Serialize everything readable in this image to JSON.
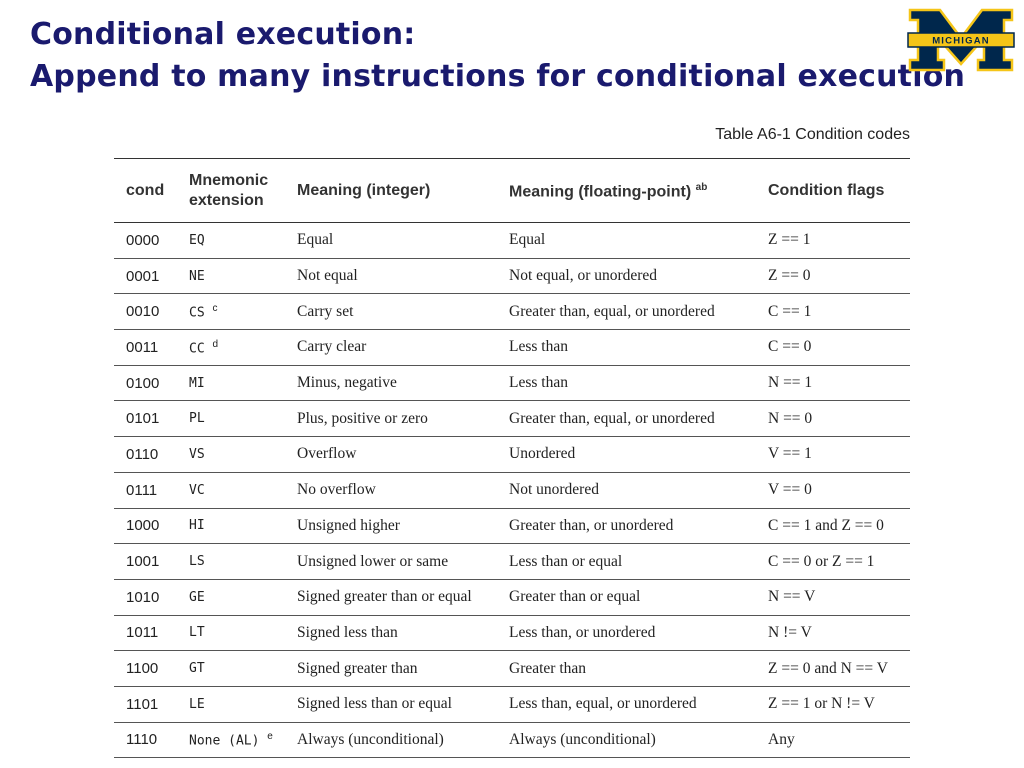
{
  "slide": {
    "title_line1": "Conditional execution:",
    "title_line2": "Append to many instructions for conditional execution"
  },
  "logo": {
    "text": "MICHIGAN",
    "colors": {
      "maize": "#F5C518",
      "blue": "#00274C"
    }
  },
  "table": {
    "caption": "Table A6-1 Condition codes",
    "headers": {
      "cond": "cond",
      "mnemonic_line1": "Mnemonic",
      "mnemonic_line2": "extension",
      "meaning_int": "Meaning (integer)",
      "meaning_fp": "Meaning (floating-point)",
      "meaning_fp_sup": "ab",
      "flags": "Condition flags"
    },
    "rows": [
      {
        "cond": "0000",
        "mn": "EQ",
        "sup": "",
        "mi": "Equal",
        "mf": "Equal",
        "flags": "Z == 1"
      },
      {
        "cond": "0001",
        "mn": "NE",
        "sup": "",
        "mi": "Not equal",
        "mf": "Not equal, or unordered",
        "flags": "Z == 0"
      },
      {
        "cond": "0010",
        "mn": "CS",
        "sup": "c",
        "mi": "Carry set",
        "mf": "Greater than, equal, or unordered",
        "flags": "C == 1"
      },
      {
        "cond": "0011",
        "mn": "CC",
        "sup": "d",
        "mi": "Carry clear",
        "mf": "Less than",
        "flags": "C == 0"
      },
      {
        "cond": "0100",
        "mn": "MI",
        "sup": "",
        "mi": "Minus, negative",
        "mf": "Less than",
        "flags": "N == 1"
      },
      {
        "cond": "0101",
        "mn": "PL",
        "sup": "",
        "mi": "Plus, positive or zero",
        "mf": "Greater than, equal, or unordered",
        "flags": "N == 0"
      },
      {
        "cond": "0110",
        "mn": "VS",
        "sup": "",
        "mi": "Overflow",
        "mf": "Unordered",
        "flags": "V == 1"
      },
      {
        "cond": "0111",
        "mn": "VC",
        "sup": "",
        "mi": "No overflow",
        "mf": "Not unordered",
        "flags": "V == 0"
      },
      {
        "cond": "1000",
        "mn": "HI",
        "sup": "",
        "mi": "Unsigned higher",
        "mf": "Greater than, or unordered",
        "flags": "C == 1 and Z == 0"
      },
      {
        "cond": "1001",
        "mn": "LS",
        "sup": "",
        "mi": "Unsigned lower or same",
        "mf": "Less than or equal",
        "flags": "C == 0 or Z == 1"
      },
      {
        "cond": "1010",
        "mn": "GE",
        "sup": "",
        "mi": "Signed greater than or equal",
        "mf": "Greater than or equal",
        "flags": "N == V"
      },
      {
        "cond": "1011",
        "mn": "LT",
        "sup": "",
        "mi": "Signed less than",
        "mf": "Less than, or unordered",
        "flags": "N != V"
      },
      {
        "cond": "1100",
        "mn": "GT",
        "sup": "",
        "mi": "Signed greater than",
        "mf": "Greater than",
        "flags": "Z == 0 and N == V"
      },
      {
        "cond": "1101",
        "mn": "LE",
        "sup": "",
        "mi": "Signed less than or equal",
        "mf": "Less than, equal, or unordered",
        "flags": "Z == 1 or N != V"
      },
      {
        "cond": "1110",
        "mn": "None (AL)",
        "sup": "e",
        "mi": "Always (unconditional)",
        "mf": "Always (unconditional)",
        "flags": "Any"
      }
    ]
  }
}
